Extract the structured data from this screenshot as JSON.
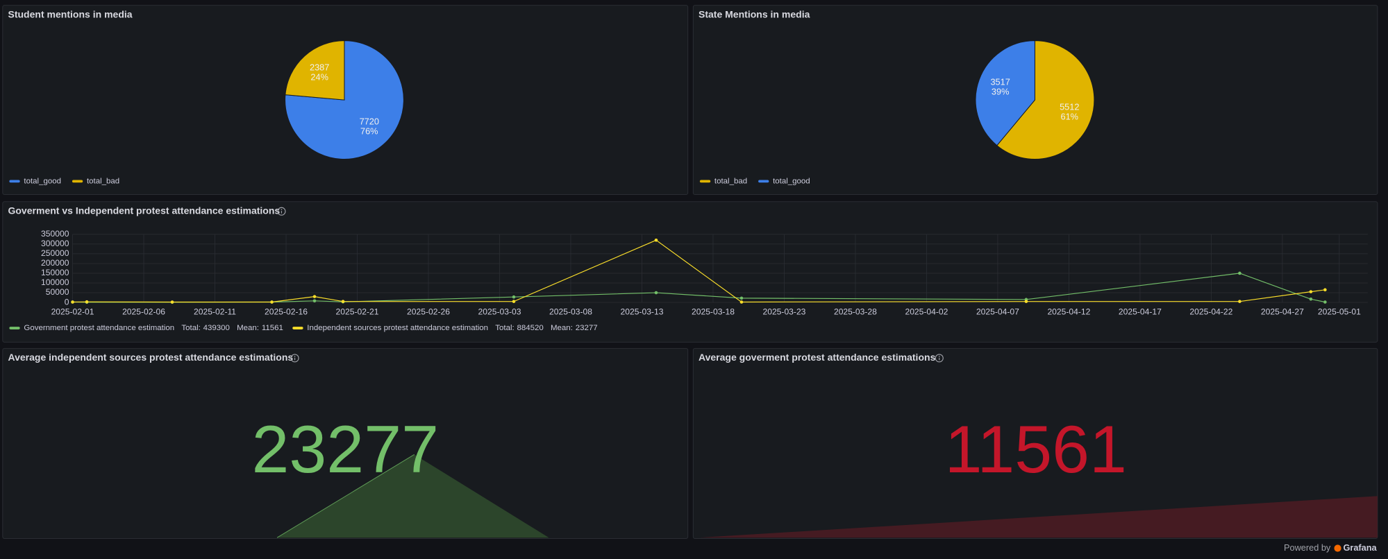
{
  "chart_data": [
    {
      "type": "pie",
      "title": "Student mentions in media",
      "categories": [
        "total_good",
        "total_bad"
      ],
      "colors": [
        "#3d7fe8",
        "#e0b400"
      ],
      "values": [
        7720,
        2387
      ],
      "percents": [
        76,
        24
      ],
      "percent_labels": [
        "76%",
        "24%"
      ]
    },
    {
      "type": "pie",
      "title": "State Mentions in media",
      "categories": [
        "total_bad",
        "total_good"
      ],
      "colors": [
        "#e0b400",
        "#3d7fe8"
      ],
      "values": [
        5512,
        3517
      ],
      "percents": [
        61,
        39
      ],
      "percent_labels": [
        "61%",
        "39%"
      ]
    },
    {
      "type": "line",
      "title": "Goverment vs Independent protest attendance estimations",
      "x": [
        "2025-02-01",
        "2025-02-02",
        "2025-02-08",
        "2025-02-15",
        "2025-02-18",
        "2025-02-20",
        "2025-03-04",
        "2025-03-14",
        "2025-03-20",
        "2025-04-09",
        "2025-04-24",
        "2025-04-29",
        "2025-04-30"
      ],
      "series": [
        {
          "name": "Government protest attendance estimation",
          "color": "#73bf69",
          "values": [
            2000,
            1000,
            1000,
            2000,
            8000,
            3000,
            28000,
            50000,
            22000,
            15000,
            150000,
            17000,
            2000
          ],
          "stats": [
            {
              "name": "Total:",
              "value": 439300
            },
            {
              "name": "Mean:",
              "value": 11561
            }
          ]
        },
        {
          "name": "Independent sources protest attendance estimation",
          "color": "#fade2a",
          "values": [
            2000,
            3000,
            2000,
            2000,
            30000,
            5000,
            5000,
            320000,
            2000,
            5000,
            5000,
            55000,
            65000
          ],
          "stats": [
            {
              "name": "Total:",
              "value": 884520
            },
            {
              "name": "Mean:",
              "value": 23277
            }
          ]
        }
      ],
      "xlim": [
        "2025-02-01",
        "2025-05-03"
      ],
      "xticks": [
        "2025-02-01",
        "2025-02-06",
        "2025-02-11",
        "2025-02-16",
        "2025-02-21",
        "2025-02-26",
        "2025-03-03",
        "2025-03-08",
        "2025-03-13",
        "2025-03-18",
        "2025-03-23",
        "2025-03-28",
        "2025-04-02",
        "2025-04-07",
        "2025-04-12",
        "2025-04-17",
        "2025-04-22",
        "2025-04-27",
        "2025-05-01"
      ],
      "ylim": [
        0,
        350000
      ],
      "yticks": [
        0,
        50000,
        100000,
        150000,
        200000,
        250000,
        300000,
        350000
      ],
      "grid": true
    },
    {
      "type": "stat",
      "title": "Average independent sources protest attendance estimations",
      "value": 23277,
      "color": "#73bf69"
    },
    {
      "type": "stat",
      "title": "Average goverment protest attendance estimations",
      "value": 11561,
      "color": "#c4162a"
    }
  ],
  "footer": {
    "text": "Powered by",
    "brand": "Grafana"
  }
}
